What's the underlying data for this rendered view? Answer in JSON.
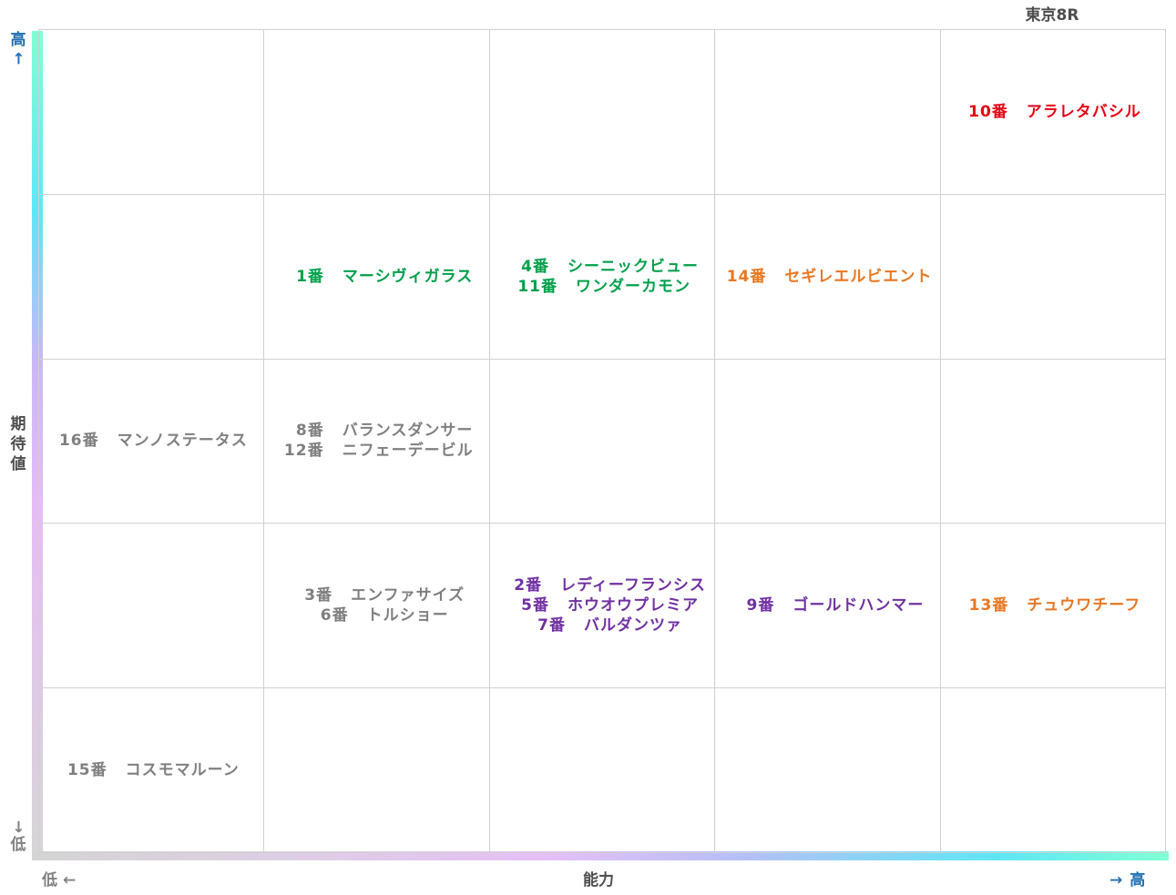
{
  "chart_data": {
    "type": "table",
    "title": "東京8R",
    "xlabel": "能力",
    "ylabel": "期待値",
    "x_low_label": "低",
    "x_high_label": "高",
    "y_low_label": "低",
    "y_high_label": "高",
    "cells": [
      {
        "row": 0,
        "col": 4,
        "color": "#e60012",
        "entries": [
          {
            "num": "10番",
            "name": "アラレタバシル"
          }
        ]
      },
      {
        "row": 1,
        "col": 1,
        "color": "#00a04a",
        "entries": [
          {
            "num": "1番",
            "name": "マーシヴィガラス"
          }
        ]
      },
      {
        "row": 1,
        "col": 2,
        "color": "#00a04a",
        "entries": [
          {
            "num": "4番",
            "name": "シーニックビュー"
          },
          {
            "num": "11番",
            "name": "ワンダーカモン"
          }
        ]
      },
      {
        "row": 1,
        "col": 3,
        "color": "#e87722",
        "entries": [
          {
            "num": "14番",
            "name": "セギレエルビエント"
          }
        ]
      },
      {
        "row": 2,
        "col": 0,
        "color": "#7f7f7f",
        "entries": [
          {
            "num": "16番",
            "name": "マンノステータス"
          }
        ]
      },
      {
        "row": 2,
        "col": 1,
        "color": "#7f7f7f",
        "entries": [
          {
            "num": "8番",
            "name": "バランスダンサー"
          },
          {
            "num": "12番",
            "name": "ニフェーデービル"
          }
        ]
      },
      {
        "row": 3,
        "col": 1,
        "color": "#7f7f7f",
        "entries": [
          {
            "num": "3番",
            "name": "エンファサイズ"
          },
          {
            "num": "6番",
            "name": "トルショー"
          }
        ]
      },
      {
        "row": 3,
        "col": 2,
        "color": "#7030a0",
        "entries": [
          {
            "num": "2番",
            "name": "レディーフランシス"
          },
          {
            "num": "5番",
            "name": "ホウオウプレミア"
          },
          {
            "num": "7番",
            "name": "バルダンツァ"
          }
        ]
      },
      {
        "row": 3,
        "col": 3,
        "color": "#7030a0",
        "entries": [
          {
            "num": "9番",
            "name": "ゴールドハンマー"
          }
        ]
      },
      {
        "row": 3,
        "col": 4,
        "color": "#e87722",
        "entries": [
          {
            "num": "13番",
            "name": "チュウワチーフ"
          }
        ]
      },
      {
        "row": 4,
        "col": 0,
        "color": "#7f7f7f",
        "entries": [
          {
            "num": "15番",
            "name": "コスモマルーン"
          }
        ]
      }
    ]
  }
}
